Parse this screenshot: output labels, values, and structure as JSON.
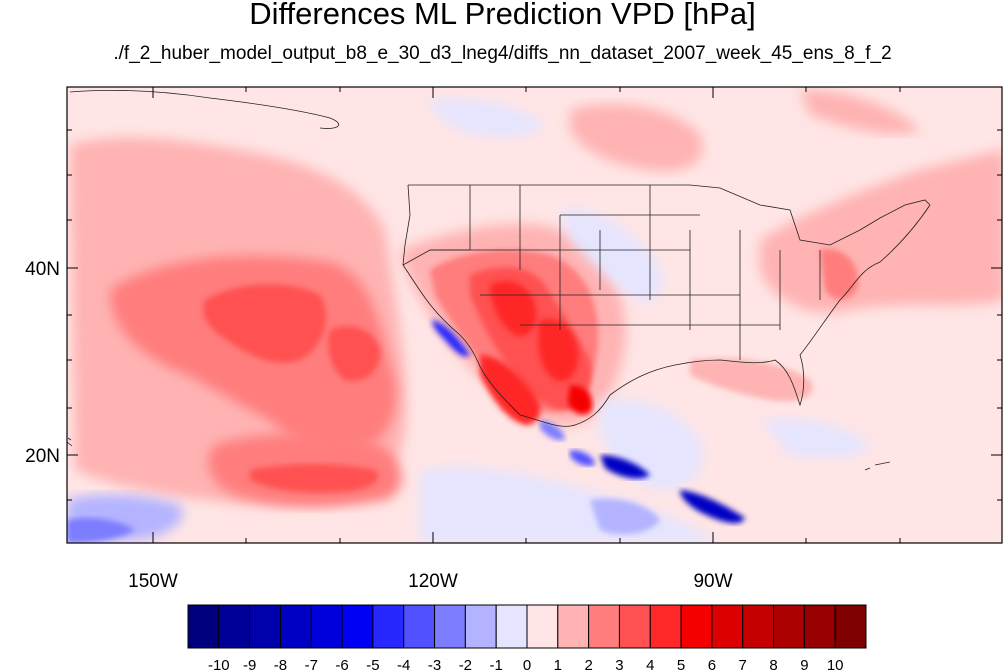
{
  "title": "Differences ML Prediction VPD [hPa]",
  "subtitle": "./f_2_huber_model_output_b8_e_30_d3_lneg4/diffs_nn_dataset_2007_week_45_ens_8_f_2",
  "map": {
    "lat_ticks": [
      "40N",
      "20N"
    ],
    "lon_ticks": [
      "150W",
      "120W",
      "90W"
    ]
  },
  "colorbar": {
    "labels": [
      "-10",
      "-9",
      "-8",
      "-7",
      "-6",
      "-5",
      "-4",
      "-3",
      "-2",
      "-1",
      "0",
      "1",
      "2",
      "3",
      "4",
      "5",
      "6",
      "7",
      "8",
      "9",
      "10"
    ],
    "colors": [
      "#00007f",
      "#000096",
      "#0000ad",
      "#0000c5",
      "#0000dc",
      "#0000f5",
      "#2727ff",
      "#5151ff",
      "#7d7dff",
      "#b3b3ff",
      "#e5e5ff",
      "#ffe5e5",
      "#ffb3b3",
      "#ff7d7d",
      "#ff5151",
      "#ff2727",
      "#f50000",
      "#dc0000",
      "#c50000",
      "#ad0000",
      "#960000",
      "#7f0000"
    ]
  }
}
